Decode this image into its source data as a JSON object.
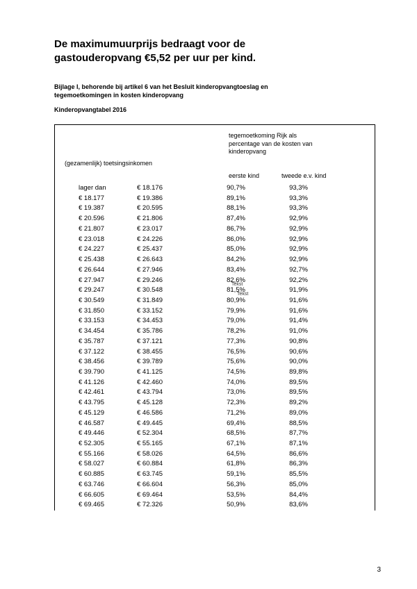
{
  "title_line1": "De maximumuurprijs bedraagt voor de",
  "title_line2": "gastouderopvang €5,52 per uur per kind.",
  "subtitle_line1": "Bijlage I, behorende bij artikel 6 van het Besluit kinderopvangtoeslag en",
  "subtitle_line2": "tegemoetkomingen in kosten kinderopvang",
  "table_name": "Kinderopvangtabel 2016",
  "header": {
    "right_l1": "tegemoetkoming Rijk als",
    "right_l2": "percentage van de kosten van",
    "right_l3": "kinderopvang",
    "left": "(gezamenlijk) toetsingsinkomen",
    "col_first": "eerste kind",
    "col_second": "tweede e.v. kind"
  },
  "overlay1": "Tekst",
  "overlay2": "Tekst",
  "page_number": "3",
  "rows": [
    {
      "a": "lager dan",
      "b": "€ 18.176",
      "c": "90,7%",
      "d": "93,3%"
    },
    {
      "a": "€ 18.177",
      "b": "€ 19.386",
      "c": "89,1%",
      "d": "93,3%"
    },
    {
      "a": "€ 19.387",
      "b": "€ 20.595",
      "c": "88,1%",
      "d": "93,3%"
    },
    {
      "a": "€ 20.596",
      "b": "€ 21.806",
      "c": "87,4%",
      "d": "92,9%"
    },
    {
      "a": "€ 21.807",
      "b": "€ 23.017",
      "c": "86,7%",
      "d": "92,9%"
    },
    {
      "a": "€ 23.018",
      "b": "€ 24.226",
      "c": "86,0%",
      "d": "92,9%"
    },
    {
      "a": "€ 24.227",
      "b": "€ 25.437",
      "c": "85,0%",
      "d": "92,9%"
    },
    {
      "a": "€ 25.438",
      "b": "€ 26.643",
      "c": "84,2%",
      "d": "92,9%"
    },
    {
      "a": "€ 26.644",
      "b": "€ 27.946",
      "c": "83,4%",
      "d": "92,7%"
    },
    {
      "a": "€ 27.947",
      "b": "€ 29.246",
      "c": "82,6%",
      "d": "92,2%",
      "ov1": true
    },
    {
      "a": "€ 29.247",
      "b": "€ 30.548",
      "c": "81,5%",
      "d": "91,9%",
      "ov2": true
    },
    {
      "a": "€ 30.549",
      "b": "€ 31.849",
      "c": "80,9%",
      "d": "91,6%"
    },
    {
      "a": "€ 31.850",
      "b": "€ 33.152",
      "c": "79,9%",
      "d": "91,6%"
    },
    {
      "a": "€ 33.153",
      "b": "€ 34.453",
      "c": "79,0%",
      "d": "91,4%"
    },
    {
      "a": "€ 34.454",
      "b": "€ 35.786",
      "c": "78,2%",
      "d": "91,0%"
    },
    {
      "a": "€ 35.787",
      "b": "€ 37.121",
      "c": "77,3%",
      "d": "90,8%"
    },
    {
      "a": "€ 37.122",
      "b": "€ 38.455",
      "c": "76,5%",
      "d": "90,6%"
    },
    {
      "a": "€ 38.456",
      "b": "€ 39.789",
      "c": "75,6%",
      "d": "90,0%"
    },
    {
      "a": "€ 39.790",
      "b": "€ 41.125",
      "c": "74,5%",
      "d": "89,8%"
    },
    {
      "a": "€ 41.126",
      "b": "€ 42.460",
      "c": "74,0%",
      "d": "89,5%"
    },
    {
      "a": "€ 42.461",
      "b": "€ 43.794",
      "c": "73,0%",
      "d": "89,5%"
    },
    {
      "a": "€ 43.795",
      "b": "€ 45.128",
      "c": "72,3%",
      "d": "89,2%"
    },
    {
      "a": "€ 45.129",
      "b": "€ 46.586",
      "c": "71,2%",
      "d": "89,0%"
    },
    {
      "a": "€ 46.587",
      "b": "€ 49.445",
      "c": "69,4%",
      "d": "88,5%"
    },
    {
      "a": "€ 49.446",
      "b": "€ 52.304",
      "c": "68,5%",
      "d": "87,7%"
    },
    {
      "a": "€ 52.305",
      "b": "€ 55.165",
      "c": "67,1%",
      "d": "87,1%"
    },
    {
      "a": "€ 55.166",
      "b": "€ 58.026",
      "c": "64,5%",
      "d": "86,6%"
    },
    {
      "a": "€ 58.027",
      "b": "€ 60.884",
      "c": "61,8%",
      "d": "86,3%"
    },
    {
      "a": "€ 60.885",
      "b": "€ 63.745",
      "c": "59,1%",
      "d": "85,5%"
    },
    {
      "a": "€ 63.746",
      "b": "€ 66.604",
      "c": "56,3%",
      "d": "85,0%"
    },
    {
      "a": "€ 66.605",
      "b": "€ 69.464",
      "c": "53,5%",
      "d": "84,4%"
    },
    {
      "a": "€ 69.465",
      "b": "€ 72.326",
      "c": "50,9%",
      "d": "83,6%"
    }
  ]
}
